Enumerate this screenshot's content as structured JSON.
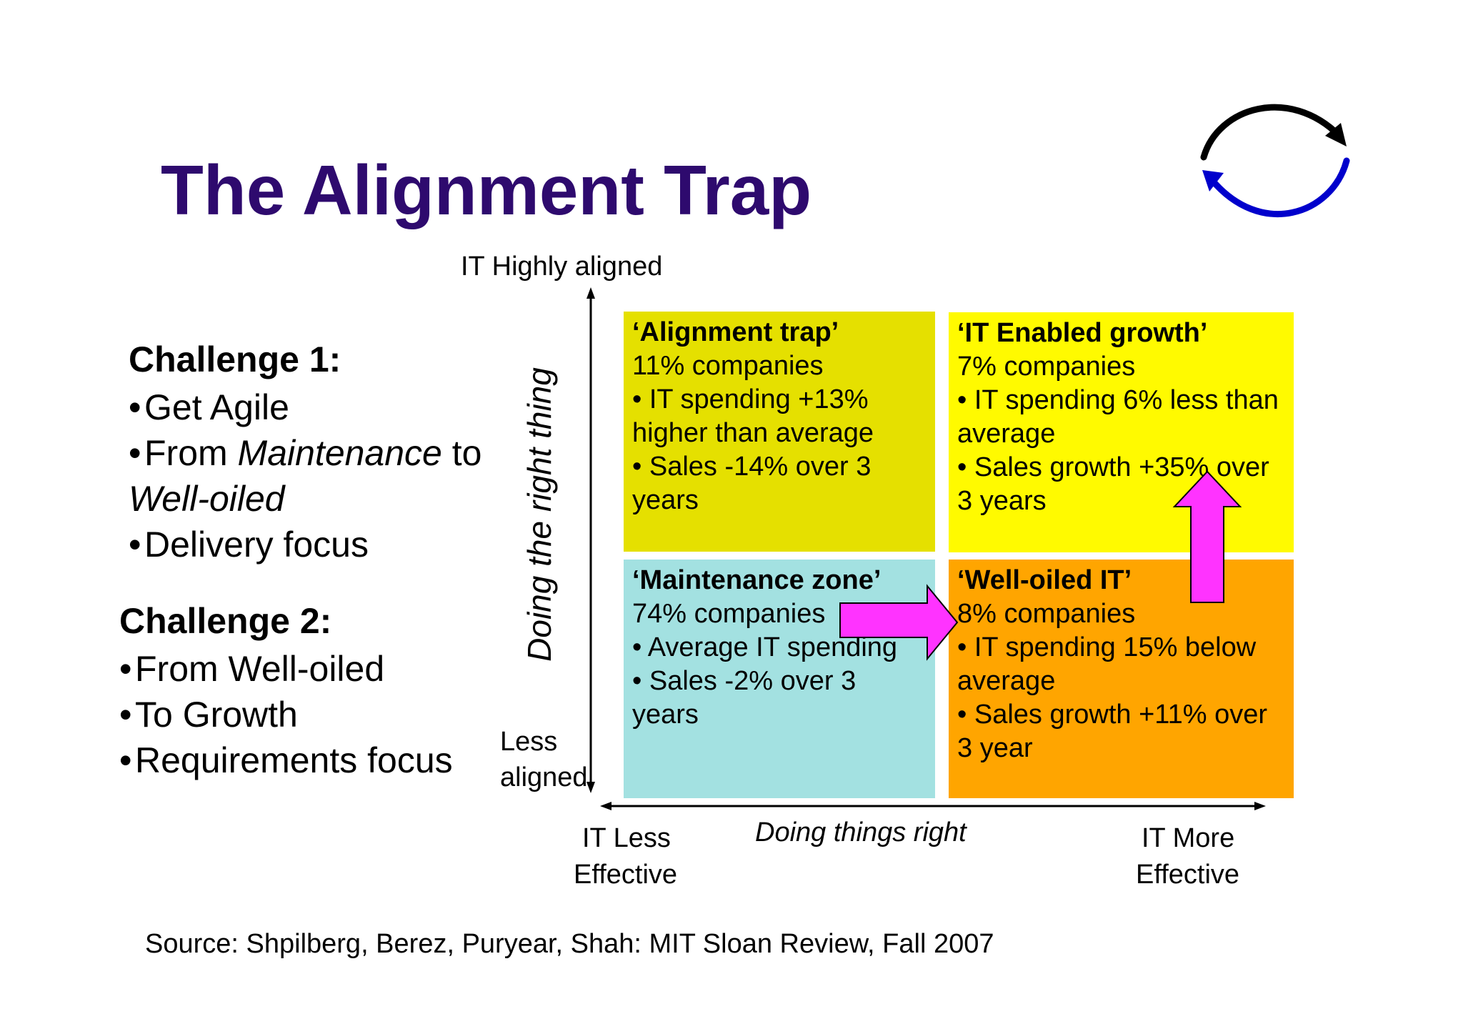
{
  "title": "The Alignment Trap",
  "challenge1": {
    "heading": "Challenge 1:",
    "bullets": {
      "b1": "Get Agile",
      "b2_pre": "From ",
      "b2_em": "Maintenance",
      "b2_post": " to",
      "b2_cont": "Well-oiled",
      "b3": "Delivery focus"
    }
  },
  "challenge2": {
    "heading": "Challenge 2:",
    "bullets": [
      "From Well-oiled",
      "To Growth",
      "Requirements focus"
    ]
  },
  "bullet_char": "•",
  "axes": {
    "y_top": "IT Highly aligned",
    "y_bottom_1": "Less",
    "y_bottom_2": "aligned",
    "y_title": "Doing the right thing",
    "x_left_1": "IT Less",
    "x_left_2": "Effective",
    "x_title": "Doing things right",
    "x_right_1": "IT More",
    "x_right_2": "Effective"
  },
  "quadrants": {
    "trap": {
      "title": "‘Alignment trap’",
      "lines": [
        "11% companies",
        "• IT spending +13%",
        "higher than average",
        "• Sales -14% over 3",
        "years"
      ],
      "color": "#e5e000"
    },
    "growth": {
      "title": "‘IT Enabled growth’",
      "lines": [
        "7% companies",
        "• IT spending 6% less than",
        "average",
        "• Sales growth +35% over",
        "3 years"
      ],
      "color": "#fffa00"
    },
    "maintenance": {
      "title": "‘Maintenance zone’",
      "lines": [
        "74% companies",
        "• Average IT spending",
        "• Sales -2% over 3",
        "years"
      ],
      "color": "#a3e1e1"
    },
    "welloiled": {
      "title": "‘Well-oiled IT’",
      "lines": [
        "8% companies",
        "• IT spending 15% below",
        "average",
        "• Sales growth +11% over",
        "3 year"
      ],
      "color": "#ffa500"
    }
  },
  "arrow_color": "#ff33ff",
  "title_color": "#2e0a6e",
  "cycle_colors": {
    "top": "#000000",
    "bottom": "#0000cc"
  },
  "source": "Source: Shpilberg, Berez, Puryear, Shah: MIT Sloan Review, Fall 2007"
}
